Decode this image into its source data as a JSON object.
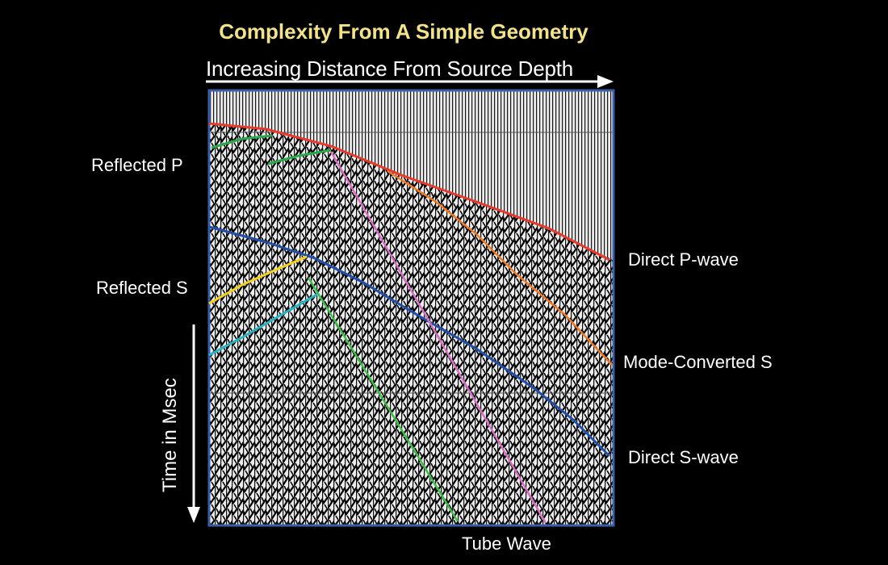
{
  "title": "Complexity From A Simple Geometry",
  "top_axis_label": "Increasing Distance From Source Depth",
  "left_axis_label": "Time in Msec",
  "labels": {
    "reflected_p": "Reflected P",
    "reflected_s": "Reflected S",
    "direct_p": "Direct P-wave",
    "mode_converted_s": "Mode-Converted S",
    "direct_s": "Direct S-wave",
    "tube_wave": "Tube Wave"
  },
  "colors": {
    "background": "#000000",
    "title": "#f2e28a",
    "panel_border": "#3a5fa8",
    "direct_p": "#e8392a",
    "mode_converted_s": "#f07a22",
    "direct_s": "#1f4fa8",
    "tube_wave_1": "#d86fc4",
    "tube_wave_2": "#3bbf45",
    "reflected_p": "#2aa84a",
    "reflected_s_yellow": "#f5d21a",
    "reflected_s_cyan": "#25b5c2"
  }
}
